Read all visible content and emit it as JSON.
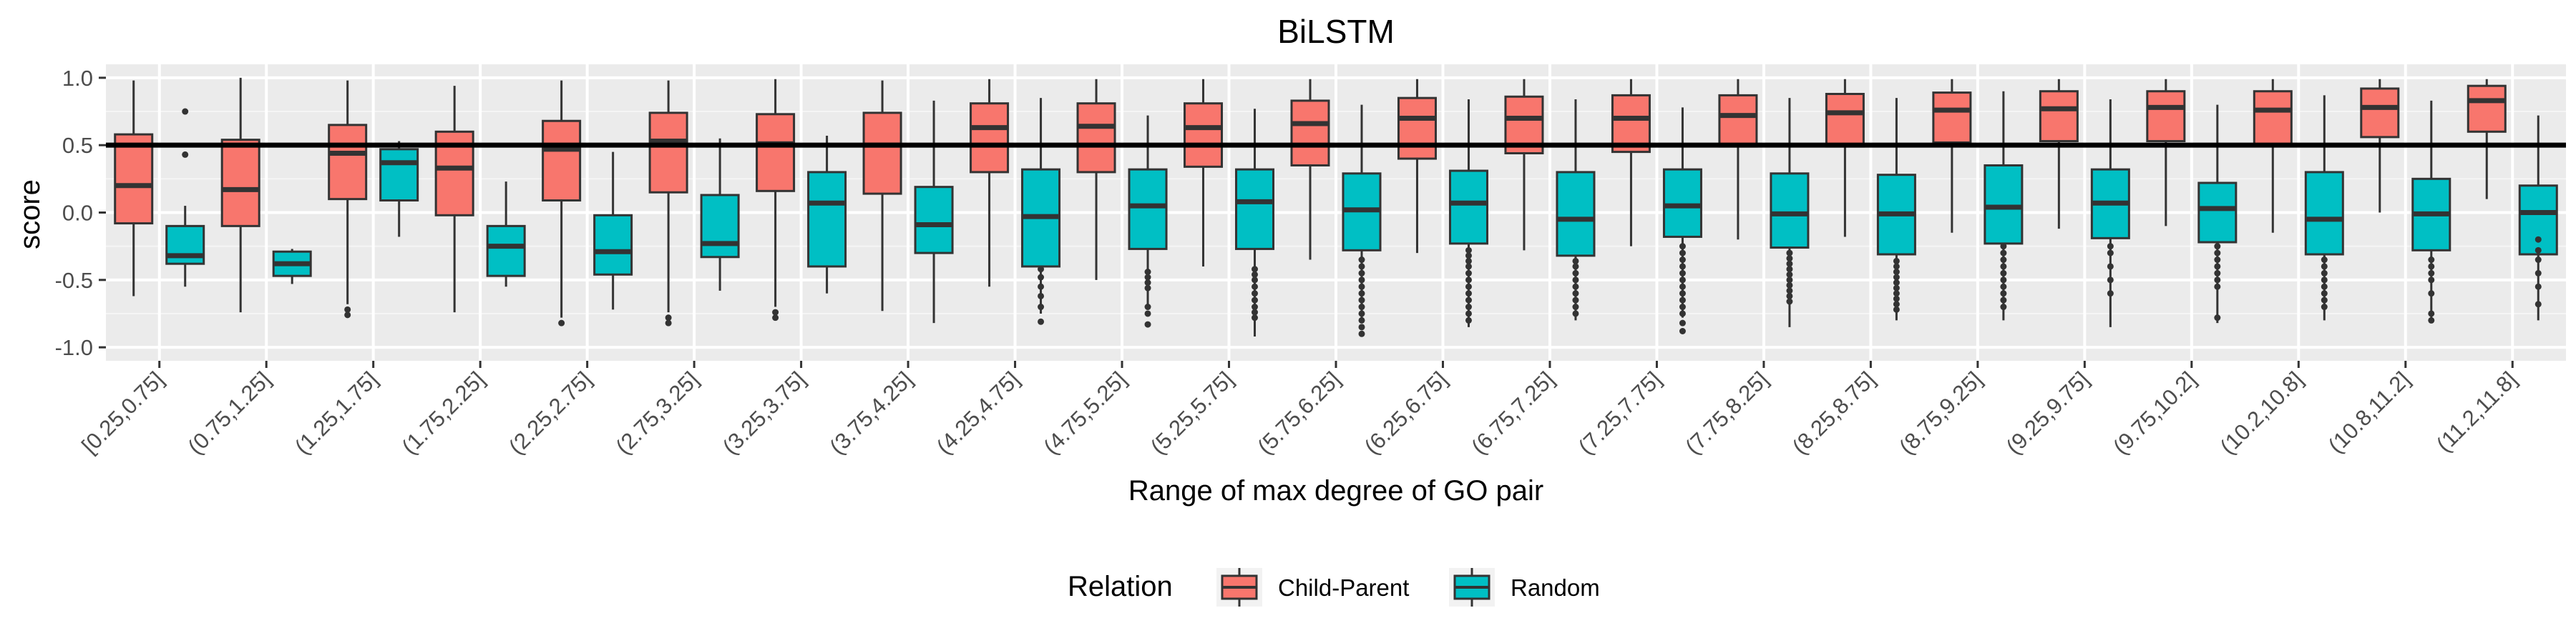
{
  "chart_data": {
    "type": "boxplot",
    "title": "BiLSTM",
    "xlabel": "Range of max degree of GO pair",
    "ylabel": "score",
    "ylim": [
      -1.0,
      1.0
    ],
    "yticks": [
      -1.0,
      -0.5,
      0.0,
      0.5,
      1.0
    ],
    "ytick_labels": [
      "-1.0",
      "-0.5",
      "0.0",
      "0.5",
      "1.0"
    ],
    "reference_line_y": 0.5,
    "grid": true,
    "legend": {
      "title": "Relation",
      "placement": "bottom"
    },
    "categories": [
      "[0.25,0.75]",
      "(0.75,1.25]",
      "(1.25,1.75]",
      "(1.75,2.25]",
      "(2.25,2.75]",
      "(2.75,3.25]",
      "(3.25,3.75]",
      "(3.75,4.25]",
      "(4.25,4.75]",
      "(4.75,5.25]",
      "(5.25,5.75]",
      "(5.75,6.25]",
      "(6.25,6.75]",
      "(6.75,7.25]",
      "(7.25,7.75]",
      "(7.75,8.25]",
      "(8.25,8.75]",
      "(8.75,9.25]",
      "(9.25,9.75]",
      "(9.75,10.2]",
      "(10.2,10.8]",
      "(10.8,11.2]",
      "(11.2,11.8]"
    ],
    "series": [
      {
        "name": "Child-Parent",
        "color": "#F8766D",
        "boxes": [
          {
            "whislo": -0.62,
            "q1": -0.08,
            "med": 0.2,
            "q3": 0.58,
            "whishi": 0.98,
            "outliers": []
          },
          {
            "whislo": -0.74,
            "q1": -0.1,
            "med": 0.17,
            "q3": 0.54,
            "whishi": 1.0,
            "outliers": []
          },
          {
            "whislo": -0.68,
            "q1": 0.1,
            "med": 0.44,
            "q3": 0.65,
            "whishi": 0.98,
            "outliers": [
              -0.72,
              -0.76
            ]
          },
          {
            "whislo": -0.74,
            "q1": -0.02,
            "med": 0.33,
            "q3": 0.6,
            "whishi": 0.94,
            "outliers": []
          },
          {
            "whislo": -0.78,
            "q1": 0.09,
            "med": 0.47,
            "q3": 0.68,
            "whishi": 0.98,
            "outliers": [
              -0.82
            ]
          },
          {
            "whislo": -0.74,
            "q1": 0.15,
            "med": 0.53,
            "q3": 0.74,
            "whishi": 0.98,
            "outliers": [
              -0.78,
              -0.82
            ]
          },
          {
            "whislo": -0.7,
            "q1": 0.16,
            "med": 0.51,
            "q3": 0.73,
            "whishi": 0.99,
            "outliers": [
              -0.74,
              -0.78
            ]
          },
          {
            "whislo": -0.73,
            "q1": 0.14,
            "med": 0.5,
            "q3": 0.74,
            "whishi": 0.98,
            "outliers": []
          },
          {
            "whislo": -0.55,
            "q1": 0.3,
            "med": 0.63,
            "q3": 0.81,
            "whishi": 0.99,
            "outliers": []
          },
          {
            "whislo": -0.5,
            "q1": 0.3,
            "med": 0.64,
            "q3": 0.81,
            "whishi": 0.99,
            "outliers": []
          },
          {
            "whislo": -0.4,
            "q1": 0.34,
            "med": 0.63,
            "q3": 0.81,
            "whishi": 0.99,
            "outliers": []
          },
          {
            "whislo": -0.35,
            "q1": 0.35,
            "med": 0.66,
            "q3": 0.83,
            "whishi": 0.99,
            "outliers": []
          },
          {
            "whislo": -0.3,
            "q1": 0.4,
            "med": 0.7,
            "q3": 0.85,
            "whishi": 0.99,
            "outliers": []
          },
          {
            "whislo": -0.28,
            "q1": 0.44,
            "med": 0.7,
            "q3": 0.86,
            "whishi": 0.99,
            "outliers": []
          },
          {
            "whislo": -0.25,
            "q1": 0.45,
            "med": 0.7,
            "q3": 0.87,
            "whishi": 0.99,
            "outliers": []
          },
          {
            "whislo": -0.2,
            "q1": 0.49,
            "med": 0.72,
            "q3": 0.87,
            "whishi": 0.99,
            "outliers": []
          },
          {
            "whislo": -0.18,
            "q1": 0.49,
            "med": 0.74,
            "q3": 0.88,
            "whishi": 0.99,
            "outliers": []
          },
          {
            "whislo": -0.15,
            "q1": 0.52,
            "med": 0.76,
            "q3": 0.89,
            "whishi": 0.99,
            "outliers": []
          },
          {
            "whislo": -0.12,
            "q1": 0.53,
            "med": 0.77,
            "q3": 0.9,
            "whishi": 0.99,
            "outliers": []
          },
          {
            "whislo": -0.1,
            "q1": 0.53,
            "med": 0.78,
            "q3": 0.9,
            "whishi": 0.99,
            "outliers": []
          },
          {
            "whislo": -0.15,
            "q1": 0.5,
            "med": 0.76,
            "q3": 0.9,
            "whishi": 0.99,
            "outliers": []
          },
          {
            "whislo": 0.0,
            "q1": 0.56,
            "med": 0.78,
            "q3": 0.92,
            "whishi": 0.99,
            "outliers": []
          },
          {
            "whislo": 0.1,
            "q1": 0.6,
            "med": 0.83,
            "q3": 0.94,
            "whishi": 0.99,
            "outliers": []
          }
        ]
      },
      {
        "name": "Random",
        "color": "#00BFC4",
        "boxes": [
          {
            "whislo": -0.55,
            "q1": -0.38,
            "med": -0.32,
            "q3": -0.1,
            "whishi": 0.05,
            "outliers": [
              0.43,
              0.75
            ]
          },
          {
            "whislo": -0.53,
            "q1": -0.47,
            "med": -0.38,
            "q3": -0.29,
            "whishi": -0.27,
            "outliers": []
          },
          {
            "whislo": -0.18,
            "q1": 0.09,
            "med": 0.37,
            "q3": 0.47,
            "whishi": 0.53,
            "outliers": []
          },
          {
            "whislo": -0.55,
            "q1": -0.47,
            "med": -0.25,
            "q3": -0.1,
            "whishi": 0.23,
            "outliers": []
          },
          {
            "whislo": -0.72,
            "q1": -0.46,
            "med": -0.29,
            "q3": -0.02,
            "whishi": 0.45,
            "outliers": []
          },
          {
            "whislo": -0.58,
            "q1": -0.33,
            "med": -0.23,
            "q3": 0.13,
            "whishi": 0.55,
            "outliers": []
          },
          {
            "whislo": -0.6,
            "q1": -0.4,
            "med": 0.07,
            "q3": 0.3,
            "whishi": 0.57,
            "outliers": []
          },
          {
            "whislo": -0.82,
            "q1": -0.3,
            "med": -0.09,
            "q3": 0.19,
            "whishi": 0.83,
            "outliers": []
          },
          {
            "whislo": -0.75,
            "q1": -0.4,
            "med": -0.03,
            "q3": 0.32,
            "whishi": 0.85,
            "outliers": [
              -0.42,
              -0.48,
              -0.55,
              -0.62,
              -0.7,
              -0.81
            ]
          },
          {
            "whislo": -0.7,
            "q1": -0.27,
            "med": 0.05,
            "q3": 0.32,
            "whishi": 0.72,
            "outliers": [
              -0.44,
              -0.48,
              -0.52,
              -0.56,
              -0.7,
              -0.75,
              -0.83
            ]
          },
          {
            "whislo": -0.92,
            "q1": -0.27,
            "med": 0.08,
            "q3": 0.32,
            "whishi": 0.77,
            "outliers": [
              -0.42,
              -0.46,
              -0.5,
              -0.55,
              -0.6,
              -0.65,
              -0.7,
              -0.74,
              -0.78
            ]
          },
          {
            "whislo": -0.82,
            "q1": -0.28,
            "med": 0.02,
            "q3": 0.29,
            "whishi": 0.8,
            "outliers": [
              -0.35,
              -0.4,
              -0.45,
              -0.5,
              -0.55,
              -0.6,
              -0.65,
              -0.7,
              -0.75,
              -0.8,
              -0.85,
              -0.9
            ]
          },
          {
            "whislo": -0.85,
            "q1": -0.23,
            "med": 0.07,
            "q3": 0.31,
            "whishi": 0.84,
            "outliers": [
              -0.28,
              -0.32,
              -0.36,
              -0.4,
              -0.45,
              -0.5,
              -0.55,
              -0.6,
              -0.65,
              -0.7,
              -0.75,
              -0.8
            ]
          },
          {
            "whislo": -0.8,
            "q1": -0.32,
            "med": -0.05,
            "q3": 0.3,
            "whishi": 0.84,
            "outliers": [
              -0.36,
              -0.4,
              -0.45,
              -0.5,
              -0.55,
              -0.6,
              -0.65,
              -0.7,
              -0.75
            ]
          },
          {
            "whislo": -0.78,
            "q1": -0.18,
            "med": 0.05,
            "q3": 0.32,
            "whishi": 0.78,
            "outliers": [
              -0.25,
              -0.3,
              -0.35,
              -0.4,
              -0.45,
              -0.5,
              -0.55,
              -0.6,
              -0.65,
              -0.7,
              -0.75,
              -0.82,
              -0.88
            ]
          },
          {
            "whislo": -0.85,
            "q1": -0.26,
            "med": -0.01,
            "q3": 0.29,
            "whishi": 0.85,
            "outliers": [
              -0.3,
              -0.34,
              -0.38,
              -0.42,
              -0.46,
              -0.5,
              -0.54,
              -0.58,
              -0.62,
              -0.66
            ]
          },
          {
            "whislo": -0.8,
            "q1": -0.31,
            "med": -0.01,
            "q3": 0.28,
            "whishi": 0.85,
            "outliers": [
              -0.36,
              -0.4,
              -0.44,
              -0.48,
              -0.52,
              -0.56,
              -0.6,
              -0.64,
              -0.68,
              -0.72
            ]
          },
          {
            "whislo": -0.8,
            "q1": -0.23,
            "med": 0.04,
            "q3": 0.35,
            "whishi": 0.9,
            "outliers": [
              -0.25,
              -0.3,
              -0.35,
              -0.4,
              -0.45,
              -0.5,
              -0.55,
              -0.6,
              -0.65,
              -0.7
            ]
          },
          {
            "whislo": -0.85,
            "q1": -0.19,
            "med": 0.07,
            "q3": 0.32,
            "whishi": 0.84,
            "outliers": [
              -0.25,
              -0.3,
              -0.4,
              -0.5,
              -0.6
            ]
          },
          {
            "whislo": -0.82,
            "q1": -0.22,
            "med": 0.03,
            "q3": 0.22,
            "whishi": 0.8,
            "outliers": [
              -0.25,
              -0.3,
              -0.35,
              -0.4,
              -0.45,
              -0.5,
              -0.55,
              -0.78
            ]
          },
          {
            "whislo": -0.8,
            "q1": -0.31,
            "med": -0.05,
            "q3": 0.3,
            "whishi": 0.87,
            "outliers": [
              -0.35,
              -0.4,
              -0.45,
              -0.5,
              -0.55,
              -0.6,
              -0.65,
              -0.7
            ]
          },
          {
            "whislo": -0.78,
            "q1": -0.28,
            "med": -0.01,
            "q3": 0.25,
            "whishi": 0.83,
            "outliers": [
              -0.35,
              -0.4,
              -0.45,
              -0.5,
              -0.6,
              -0.75,
              -0.8
            ]
          },
          {
            "whislo": -0.8,
            "q1": -0.31,
            "med": 0.0,
            "q3": 0.2,
            "whishi": 0.72,
            "outliers": [
              -0.2,
              -0.28,
              -0.35,
              -0.45,
              -0.55,
              -0.68
            ]
          }
        ]
      }
    ]
  }
}
